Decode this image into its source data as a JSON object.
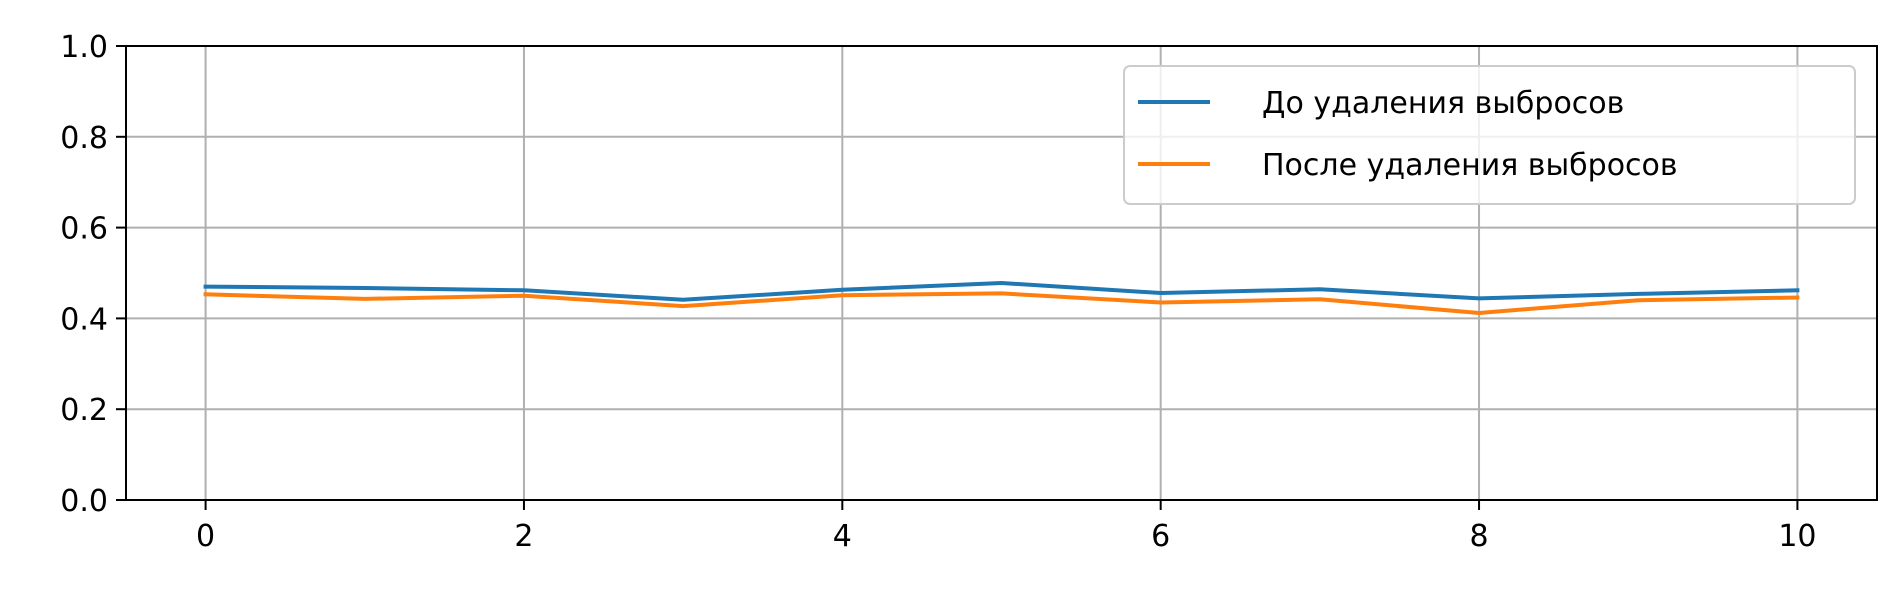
{
  "chart_data": {
    "type": "line",
    "title": "",
    "xlabel": "",
    "ylabel": "",
    "xlim": [
      -0.5,
      10.5
    ],
    "ylim": [
      0.0,
      1.0
    ],
    "xticks": [
      0,
      2,
      4,
      6,
      8,
      10
    ],
    "xtick_labels": [
      "0",
      "2",
      "4",
      "6",
      "8",
      "10"
    ],
    "yticks": [
      0.0,
      0.2,
      0.4,
      0.6,
      0.8,
      1.0
    ],
    "ytick_labels": [
      "0.0",
      "0.2",
      "0.4",
      "0.6",
      "0.8",
      "1.0"
    ],
    "grid": true,
    "legend_position": "top-right",
    "x": [
      0,
      1,
      2,
      3,
      4,
      5,
      6,
      7,
      8,
      9,
      10
    ],
    "series": [
      {
        "name": "До удаления выбросов",
        "color": "#1f77b4",
        "values": [
          0.47,
          0.467,
          0.462,
          0.441,
          0.463,
          0.478,
          0.456,
          0.464,
          0.444,
          0.454,
          0.462
        ]
      },
      {
        "name": "После удаления выбросов",
        "color": "#ff7f0e",
        "values": [
          0.453,
          0.443,
          0.45,
          0.427,
          0.451,
          0.455,
          0.435,
          0.442,
          0.412,
          0.44,
          0.446
        ]
      }
    ]
  }
}
